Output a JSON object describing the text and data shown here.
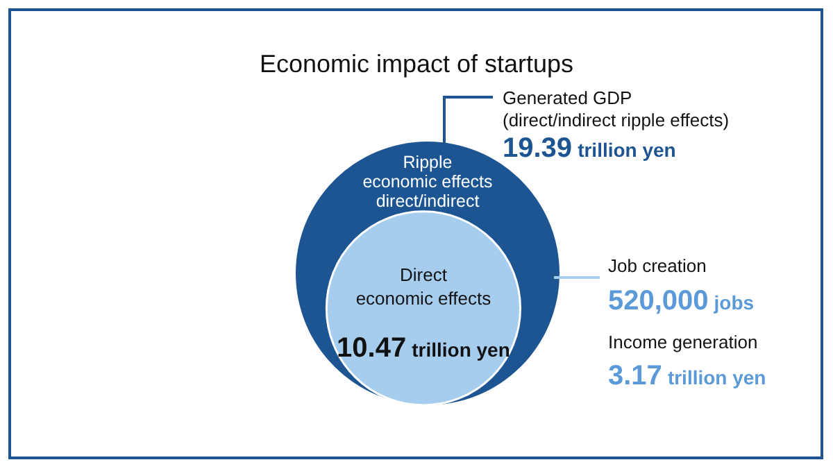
{
  "chart_data": {
    "type": "other",
    "title": "Economic impact of startups",
    "categories": [
      "Ripple\neconomic effects\ndirect/indirect",
      "Direct\neconomic effects"
    ],
    "values": [
      19.39,
      10.47
    ],
    "value_labels": [
      "19.39 trillion yen",
      "10.47 trillion yen"
    ],
    "colors": [
      "#1c5592",
      "#a7cdee"
    ],
    "annotations": [
      "Generated GDP",
      "(direct/indirect ripple effects)",
      "Job creation",
      "520,000 jobs",
      "Income generation",
      "3.17 trillion yen"
    ]
  }
}
